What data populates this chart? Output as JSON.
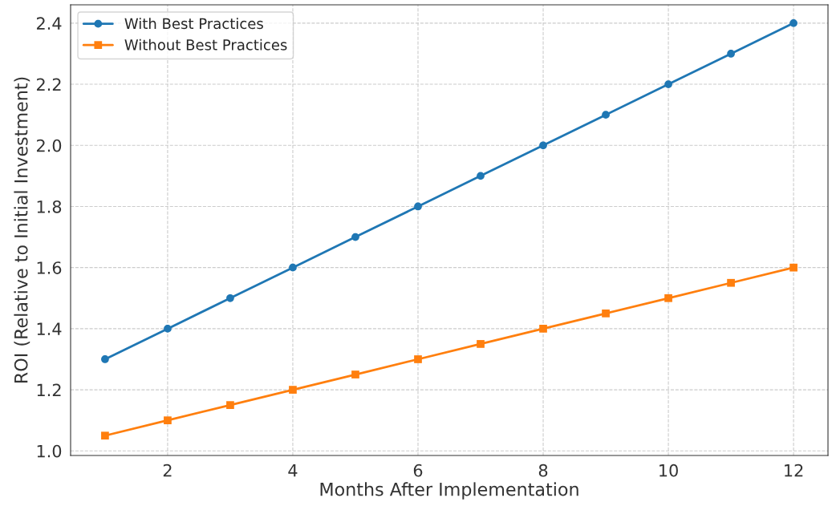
{
  "chart_data": {
    "type": "line",
    "xlabel": "Months After Implementation",
    "ylabel": "ROI (Relative to Initial Investment)",
    "x": [
      1,
      2,
      3,
      4,
      5,
      6,
      7,
      8,
      9,
      10,
      11,
      12
    ],
    "series": [
      {
        "name": "With Best Practices",
        "color": "#1f77b4",
        "marker": "circle",
        "values": [
          1.3,
          1.4,
          1.5,
          1.6,
          1.7,
          1.8,
          1.9,
          2.0,
          2.1,
          2.2,
          2.3,
          2.4
        ]
      },
      {
        "name": "Without Best Practices",
        "color": "#ff7f0e",
        "marker": "square",
        "values": [
          1.05,
          1.1,
          1.15,
          1.2,
          1.25,
          1.3,
          1.35,
          1.4,
          1.45,
          1.5,
          1.55,
          1.6
        ]
      }
    ],
    "xlim": [
      0.45,
      12.55
    ],
    "ylim": [
      0.985,
      2.46
    ],
    "xticks": [
      2,
      4,
      6,
      8,
      10,
      12
    ],
    "yticks": [
      {
        "value": 1.0,
        "label": "1.0"
      },
      {
        "value": 1.2,
        "label": "1.2"
      },
      {
        "value": 1.4,
        "label": "1.4"
      },
      {
        "value": 1.6,
        "label": "1.6"
      },
      {
        "value": 1.8,
        "label": "1.8"
      },
      {
        "value": 2.0,
        "label": "2.0"
      },
      {
        "value": 2.2,
        "label": "2.2"
      },
      {
        "value": 2.4,
        "label": "2.4"
      }
    ],
    "grid": true,
    "legend": "top left",
    "line_style": "solid"
  }
}
